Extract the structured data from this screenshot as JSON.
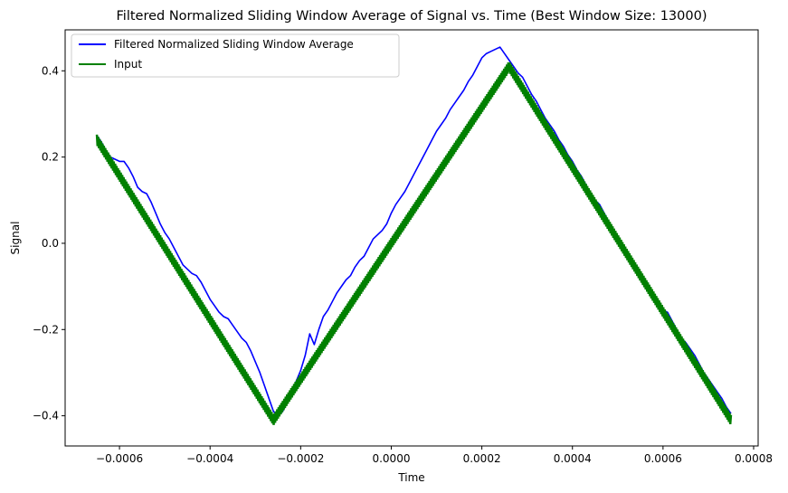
{
  "chart_data": {
    "type": "line",
    "title": "Filtered Normalized Sliding Window Average of Signal vs. Time (Best Window Size: 13000)",
    "xlabel": "Time",
    "ylabel": "Signal",
    "xlim": [
      -0.00072,
      0.00081
    ],
    "ylim": [
      -0.47,
      0.495
    ],
    "grid": false,
    "legend_position": "top-left",
    "x_ticks": [
      -0.0006,
      -0.0004,
      -0.0002,
      0.0,
      0.0002,
      0.0004,
      0.0006,
      0.0008
    ],
    "x_tick_labels": [
      "−0.0006",
      "−0.0004",
      "−0.0002",
      "0.0000",
      "0.0002",
      "0.0004",
      "0.0006",
      "0.0008"
    ],
    "y_ticks": [
      -0.4,
      -0.2,
      0.0,
      0.2,
      0.4
    ],
    "y_tick_labels": [
      "−0.4",
      "−0.2",
      "0.0",
      "0.2",
      "0.4"
    ],
    "series": [
      {
        "name": "Filtered Normalized Sliding Window Average",
        "color": "#0000ff",
        "x": [
          -0.00065,
          -0.00064,
          -0.00063,
          -0.00062,
          -0.00061,
          -0.0006,
          -0.00059,
          -0.00058,
          -0.00057,
          -0.00056,
          -0.00055,
          -0.00054,
          -0.00053,
          -0.00052,
          -0.00051,
          -0.0005,
          -0.00049,
          -0.00048,
          -0.00047,
          -0.00046,
          -0.00045,
          -0.00044,
          -0.00043,
          -0.00042,
          -0.00041,
          -0.0004,
          -0.00039,
          -0.00038,
          -0.00037,
          -0.00036,
          -0.00035,
          -0.00034,
          -0.00033,
          -0.00032,
          -0.00031,
          -0.0003,
          -0.00029,
          -0.00028,
          -0.00027,
          -0.00026,
          -0.00025,
          -0.00024,
          -0.00023,
          -0.00022,
          -0.00021,
          -0.0002,
          -0.00019,
          -0.00018,
          -0.00017,
          -0.00016,
          -0.00015,
          -0.00014,
          -0.00013,
          -0.00012,
          -0.00011,
          -0.0001,
          -9e-05,
          -8e-05,
          -7e-05,
          -6e-05,
          -5e-05,
          -4e-05,
          -3e-05,
          -2e-05,
          -1e-05,
          0.0,
          1e-05,
          2e-05,
          3e-05,
          4e-05,
          5e-05,
          6e-05,
          7e-05,
          8e-05,
          9e-05,
          0.0001,
          0.00011,
          0.00012,
          0.00013,
          0.00014,
          0.00015,
          0.00016,
          0.00017,
          0.00018,
          0.00019,
          0.0002,
          0.00021,
          0.00022,
          0.00023,
          0.00024,
          0.00025,
          0.00026,
          0.00027,
          0.00028,
          0.00029,
          0.0003,
          0.00031,
          0.00032,
          0.00033,
          0.00034,
          0.00035,
          0.00036,
          0.00037,
          0.00038,
          0.00039,
          0.0004,
          0.00041,
          0.00042,
          0.00043,
          0.00044,
          0.00045,
          0.00046,
          0.00047,
          0.00048,
          0.00049,
          0.0005,
          0.00051,
          0.00052,
          0.00053,
          0.00054,
          0.00055,
          0.00056,
          0.00057,
          0.00058,
          0.00059,
          0.0006,
          0.00061,
          0.00062,
          0.00063,
          0.00064,
          0.00065,
          0.00066,
          0.00067,
          0.00068,
          0.00069,
          0.0007,
          0.00071,
          0.00072,
          0.00073,
          0.00074,
          0.00075
        ],
        "y": [
          0.25,
          0.235,
          0.215,
          0.2,
          0.195,
          0.19,
          0.19,
          0.175,
          0.155,
          0.13,
          0.12,
          0.115,
          0.095,
          0.07,
          0.045,
          0.025,
          0.01,
          -0.01,
          -0.03,
          -0.05,
          -0.06,
          -0.07,
          -0.075,
          -0.09,
          -0.11,
          -0.13,
          -0.145,
          -0.16,
          -0.17,
          -0.175,
          -0.19,
          -0.205,
          -0.22,
          -0.23,
          -0.25,
          -0.275,
          -0.3,
          -0.33,
          -0.36,
          -0.39,
          -0.4,
          -0.39,
          -0.37,
          -0.345,
          -0.32,
          -0.295,
          -0.26,
          -0.21,
          -0.235,
          -0.2,
          -0.17,
          -0.155,
          -0.135,
          -0.115,
          -0.1,
          -0.085,
          -0.075,
          -0.055,
          -0.04,
          -0.03,
          -0.01,
          0.01,
          0.02,
          0.03,
          0.045,
          0.07,
          0.09,
          0.105,
          0.12,
          0.14,
          0.16,
          0.18,
          0.2,
          0.22,
          0.24,
          0.26,
          0.275,
          0.29,
          0.31,
          0.325,
          0.34,
          0.355,
          0.375,
          0.39,
          0.41,
          0.43,
          0.44,
          0.445,
          0.45,
          0.455,
          0.44,
          0.425,
          0.41,
          0.395,
          0.385,
          0.365,
          0.345,
          0.33,
          0.31,
          0.29,
          0.275,
          0.26,
          0.24,
          0.225,
          0.205,
          0.19,
          0.17,
          0.155,
          0.135,
          0.11,
          0.1,
          0.09,
          0.07,
          0.05,
          0.03,
          0.01,
          -0.005,
          -0.02,
          -0.04,
          -0.06,
          -0.075,
          -0.09,
          -0.11,
          -0.125,
          -0.14,
          -0.155,
          -0.16,
          -0.18,
          -0.2,
          -0.22,
          -0.23,
          -0.245,
          -0.26,
          -0.28,
          -0.3,
          -0.315,
          -0.33,
          -0.345,
          -0.36,
          -0.38,
          -0.395
        ]
      },
      {
        "name": "Input",
        "color": "#008000",
        "x": [
          -0.00065,
          -0.00026,
          0.00026,
          0.00075
        ],
        "y": [
          0.24,
          -0.41,
          0.41,
          -0.41
        ],
        "ripple_amplitude": 0.012
      }
    ]
  }
}
